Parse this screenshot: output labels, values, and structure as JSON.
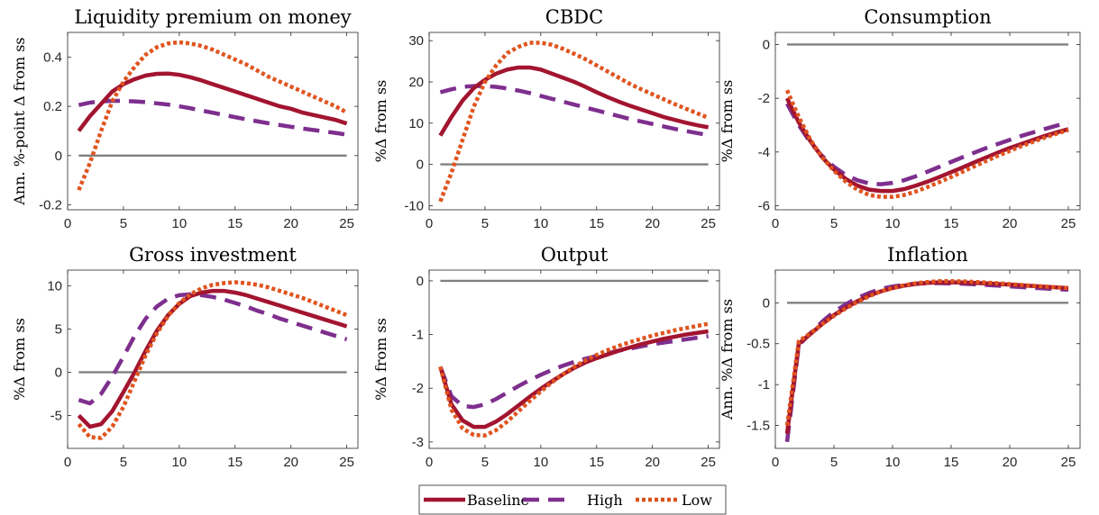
{
  "chart_data": [
    {
      "type": "line",
      "title": "Liquidity premium on money",
      "ylabel": "Ann. %-point Δ from ss",
      "xlim": [
        0,
        26
      ],
      "ylim": [
        -0.22,
        0.5
      ],
      "xticks": [
        0,
        5,
        10,
        15,
        20,
        25
      ],
      "yticks": [
        -0.2,
        0,
        0.2,
        0.4
      ],
      "ytick_labels": [
        "-0.2",
        "0",
        "0.2",
        "0.4"
      ],
      "grid": false,
      "x": [
        1,
        2,
        3,
        4,
        5,
        6,
        7,
        8,
        9,
        10,
        11,
        12,
        13,
        14,
        15,
        16,
        17,
        18,
        19,
        20,
        21,
        22,
        23,
        24,
        25
      ],
      "zero_line": 0,
      "series": [
        {
          "name": "Baseline",
          "values": [
            0.1,
            0.16,
            0.21,
            0.26,
            0.29,
            0.31,
            0.325,
            0.332,
            0.333,
            0.328,
            0.318,
            0.305,
            0.29,
            0.275,
            0.26,
            0.245,
            0.23,
            0.215,
            0.2,
            0.19,
            0.175,
            0.165,
            0.155,
            0.145,
            0.13
          ]
        },
        {
          "name": "High",
          "values": [
            0.205,
            0.215,
            0.22,
            0.222,
            0.222,
            0.22,
            0.217,
            0.212,
            0.207,
            0.2,
            0.192,
            0.183,
            0.174,
            0.165,
            0.156,
            0.147,
            0.139,
            0.131,
            0.124,
            0.117,
            0.11,
            0.104,
            0.098,
            0.092,
            0.085
          ]
        },
        {
          "name": "Low",
          "values": [
            -0.14,
            -0.03,
            0.1,
            0.22,
            0.3,
            0.36,
            0.41,
            0.44,
            0.455,
            0.46,
            0.455,
            0.445,
            0.43,
            0.41,
            0.39,
            0.37,
            0.345,
            0.32,
            0.3,
            0.28,
            0.26,
            0.24,
            0.22,
            0.2,
            0.175
          ]
        }
      ]
    },
    {
      "type": "line",
      "title": "CBDC",
      "ylabel": "%Δ from ss",
      "xlim": [
        0,
        26
      ],
      "ylim": [
        -11,
        32
      ],
      "xticks": [
        0,
        5,
        10,
        15,
        20,
        25
      ],
      "yticks": [
        -10,
        0,
        10,
        20,
        30
      ],
      "ytick_labels": [
        "-10",
        "0",
        "10",
        "20",
        "30"
      ],
      "grid": false,
      "x": [
        1,
        2,
        3,
        4,
        5,
        6,
        7,
        8,
        9,
        10,
        11,
        12,
        13,
        14,
        15,
        16,
        17,
        18,
        19,
        20,
        21,
        22,
        23,
        24,
        25
      ],
      "zero_line": 0,
      "series": [
        {
          "name": "Baseline",
          "values": [
            7,
            11.5,
            15.5,
            18.5,
            20.5,
            22,
            23,
            23.5,
            23.5,
            23,
            22,
            21,
            20,
            18.8,
            17.5,
            16.3,
            15.2,
            14.2,
            13.3,
            12.4,
            11.5,
            10.8,
            10.1,
            9.5,
            9
          ]
        },
        {
          "name": "High",
          "values": [
            17.5,
            18.2,
            18.8,
            19,
            19,
            18.8,
            18.4,
            17.9,
            17.3,
            16.6,
            15.9,
            15.2,
            14.5,
            13.8,
            13.1,
            12.4,
            11.7,
            11,
            10.4,
            9.8,
            9.2,
            8.6,
            8.1,
            7.6,
            7.1
          ]
        },
        {
          "name": "Low",
          "values": [
            -9,
            -2,
            6,
            14,
            20,
            24,
            27,
            28.5,
            29.5,
            29.5,
            29,
            28,
            26.8,
            25.5,
            24,
            22.5,
            21,
            19.5,
            18.2,
            17,
            15.8,
            14.6,
            13.5,
            12.4,
            11.3
          ]
        }
      ]
    },
    {
      "type": "line",
      "title": "Consumption",
      "ylabel": "%Δ from ss",
      "xlim": [
        0,
        26
      ],
      "ylim": [
        -6.15,
        0.45
      ],
      "xticks": [
        0,
        5,
        10,
        15,
        20,
        25
      ],
      "yticks": [
        -6,
        -4,
        -2,
        0
      ],
      "ytick_labels": [
        "-6",
        "-4",
        "-2",
        "0"
      ],
      "grid": false,
      "x": [
        1,
        2,
        3,
        4,
        5,
        6,
        7,
        8,
        9,
        10,
        11,
        12,
        13,
        14,
        15,
        16,
        17,
        18,
        19,
        20,
        21,
        22,
        23,
        24,
        25
      ],
      "zero_line": 0,
      "series": [
        {
          "name": "Baseline",
          "values": [
            -2,
            -2.9,
            -3.6,
            -4.2,
            -4.65,
            -5,
            -5.25,
            -5.4,
            -5.45,
            -5.45,
            -5.38,
            -5.25,
            -5.1,
            -4.93,
            -4.75,
            -4.57,
            -4.38,
            -4.2,
            -4.02,
            -3.85,
            -3.7,
            -3.55,
            -3.4,
            -3.27,
            -3.15
          ]
        },
        {
          "name": "High",
          "values": [
            -2.2,
            -3,
            -3.65,
            -4.15,
            -4.55,
            -4.85,
            -5.05,
            -5.17,
            -5.2,
            -5.15,
            -5.05,
            -4.9,
            -4.73,
            -4.55,
            -4.37,
            -4.19,
            -4.02,
            -3.85,
            -3.7,
            -3.55,
            -3.4,
            -3.27,
            -3.14,
            -3.02,
            -2.9
          ]
        },
        {
          "name": "Low",
          "values": [
            -1.7,
            -2.7,
            -3.55,
            -4.2,
            -4.7,
            -5.1,
            -5.4,
            -5.6,
            -5.67,
            -5.67,
            -5.6,
            -5.47,
            -5.3,
            -5.12,
            -4.93,
            -4.73,
            -4.53,
            -4.33,
            -4.14,
            -3.96,
            -3.78,
            -3.62,
            -3.46,
            -3.32,
            -3.18
          ]
        }
      ]
    },
    {
      "type": "line",
      "title": "Gross investment",
      "ylabel": "%Δ from ss",
      "xlim": [
        0,
        26
      ],
      "ylim": [
        -8.8,
        11.8
      ],
      "xticks": [
        0,
        5,
        10,
        15,
        20,
        25
      ],
      "yticks": [
        -5,
        0,
        5,
        10
      ],
      "ytick_labels": [
        "-5",
        "0",
        "5",
        "10"
      ],
      "grid": false,
      "x": [
        1,
        2,
        3,
        4,
        5,
        6,
        7,
        8,
        9,
        10,
        11,
        12,
        13,
        14,
        15,
        16,
        17,
        18,
        19,
        20,
        21,
        22,
        23,
        24,
        25
      ],
      "zero_line": 0,
      "series": [
        {
          "name": "Baseline",
          "values": [
            -5,
            -6.3,
            -6,
            -4.5,
            -2.3,
            0,
            2.5,
            4.8,
            6.6,
            7.9,
            8.8,
            9.2,
            9.4,
            9.4,
            9.2,
            8.9,
            8.5,
            8.1,
            7.7,
            7.3,
            6.9,
            6.5,
            6.1,
            5.7,
            5.3
          ]
        },
        {
          "name": "High",
          "values": [
            -3.2,
            -3.6,
            -2.5,
            -0.5,
            1.8,
            4.2,
            6.2,
            7.6,
            8.5,
            8.9,
            9,
            8.9,
            8.7,
            8.4,
            8,
            7.6,
            7.1,
            6.7,
            6.2,
            5.8,
            5.4,
            5,
            4.6,
            4.2,
            3.8
          ]
        },
        {
          "name": "Low",
          "values": [
            -6,
            -7.5,
            -7.6,
            -6.3,
            -4,
            -1,
            2,
            4.5,
            6.5,
            8,
            9,
            9.7,
            10.1,
            10.3,
            10.4,
            10.3,
            10.1,
            9.8,
            9.4,
            9,
            8.6,
            8.1,
            7.6,
            7.1,
            6.6
          ]
        }
      ]
    },
    {
      "type": "line",
      "title": "Output",
      "ylabel": "%Δ from ss",
      "xlim": [
        0,
        26
      ],
      "ylim": [
        -3.12,
        0.2
      ],
      "xticks": [
        0,
        5,
        10,
        15,
        20,
        25
      ],
      "yticks": [
        -3,
        -2,
        -1,
        0
      ],
      "ytick_labels": [
        "-3",
        "-2",
        "-1",
        "0"
      ],
      "grid": false,
      "x": [
        1,
        2,
        3,
        4,
        5,
        6,
        7,
        8,
        9,
        10,
        11,
        12,
        13,
        14,
        15,
        16,
        17,
        18,
        19,
        20,
        21,
        22,
        23,
        24,
        25
      ],
      "zero_line": 0,
      "series": [
        {
          "name": "Baseline",
          "values": [
            -1.6,
            -2.3,
            -2.6,
            -2.72,
            -2.72,
            -2.62,
            -2.48,
            -2.32,
            -2.16,
            -2.01,
            -1.87,
            -1.74,
            -1.62,
            -1.52,
            -1.44,
            -1.37,
            -1.3,
            -1.24,
            -1.18,
            -1.13,
            -1.08,
            -1.04,
            -1,
            -0.97,
            -0.94
          ]
        },
        {
          "name": "High",
          "values": [
            -1.6,
            -2.15,
            -2.33,
            -2.35,
            -2.3,
            -2.2,
            -2.08,
            -1.96,
            -1.85,
            -1.75,
            -1.66,
            -1.58,
            -1.51,
            -1.45,
            -1.4,
            -1.35,
            -1.3,
            -1.26,
            -1.22,
            -1.18,
            -1.15,
            -1.12,
            -1.09,
            -1.06,
            -1.03
          ]
        },
        {
          "name": "Low",
          "values": [
            -1.6,
            -2.4,
            -2.75,
            -2.87,
            -2.88,
            -2.78,
            -2.62,
            -2.43,
            -2.24,
            -2.06,
            -1.89,
            -1.74,
            -1.6,
            -1.48,
            -1.38,
            -1.29,
            -1.21,
            -1.14,
            -1.08,
            -1.02,
            -0.97,
            -0.92,
            -0.88,
            -0.84,
            -0.8
          ]
        }
      ]
    },
    {
      "type": "line",
      "title": "Inflation",
      "ylabel": "Ann. %Δ from ss",
      "xlim": [
        0,
        26
      ],
      "ylim": [
        -1.78,
        0.4
      ],
      "xticks": [
        0,
        5,
        10,
        15,
        20,
        25
      ],
      "yticks": [
        -1.5,
        -1,
        -0.5,
        0
      ],
      "ytick_labels": [
        "-1.5",
        "-1",
        "-0.5",
        "0"
      ],
      "grid": false,
      "x": [
        1,
        2,
        3,
        4,
        5,
        6,
        7,
        8,
        9,
        10,
        11,
        12,
        13,
        14,
        15,
        16,
        17,
        18,
        19,
        20,
        21,
        22,
        23,
        24,
        25
      ],
      "zero_line": 0,
      "series": [
        {
          "name": "Baseline",
          "values": [
            -1.6,
            -0.5,
            -0.38,
            -0.26,
            -0.15,
            -0.06,
            0.02,
            0.09,
            0.14,
            0.18,
            0.21,
            0.23,
            0.245,
            0.25,
            0.25,
            0.248,
            0.243,
            0.237,
            0.23,
            0.222,
            0.214,
            0.205,
            0.197,
            0.188,
            0.18
          ]
        },
        {
          "name": "High",
          "values": [
            -1.7,
            -0.52,
            -0.37,
            -0.23,
            -0.11,
            -0.02,
            0.06,
            0.12,
            0.17,
            0.2,
            0.22,
            0.235,
            0.24,
            0.24,
            0.238,
            0.233,
            0.226,
            0.218,
            0.21,
            0.2,
            0.192,
            0.183,
            0.175,
            0.167,
            0.16
          ]
        },
        {
          "name": "Low",
          "values": [
            -1.5,
            -0.47,
            -0.37,
            -0.26,
            -0.16,
            -0.07,
            0.01,
            0.08,
            0.14,
            0.18,
            0.215,
            0.24,
            0.255,
            0.265,
            0.265,
            0.262,
            0.256,
            0.248,
            0.239,
            0.229,
            0.219,
            0.209,
            0.199,
            0.19,
            0.18
          ]
        }
      ]
    }
  ],
  "legend": {
    "position": "bottom-center",
    "items": [
      {
        "label": "Baseline",
        "color": "#A2142F",
        "style": "solid"
      },
      {
        "label": "High",
        "color": "#7E2F8E",
        "style": "dashed"
      },
      {
        "label": "Low",
        "color": "#D95319",
        "style": "dotted"
      }
    ]
  },
  "colors": {
    "baseline": "#A2142F",
    "high": "#7E2F8E",
    "low": "#E0541E",
    "zero_line": "#808080",
    "axis": "#262626"
  }
}
